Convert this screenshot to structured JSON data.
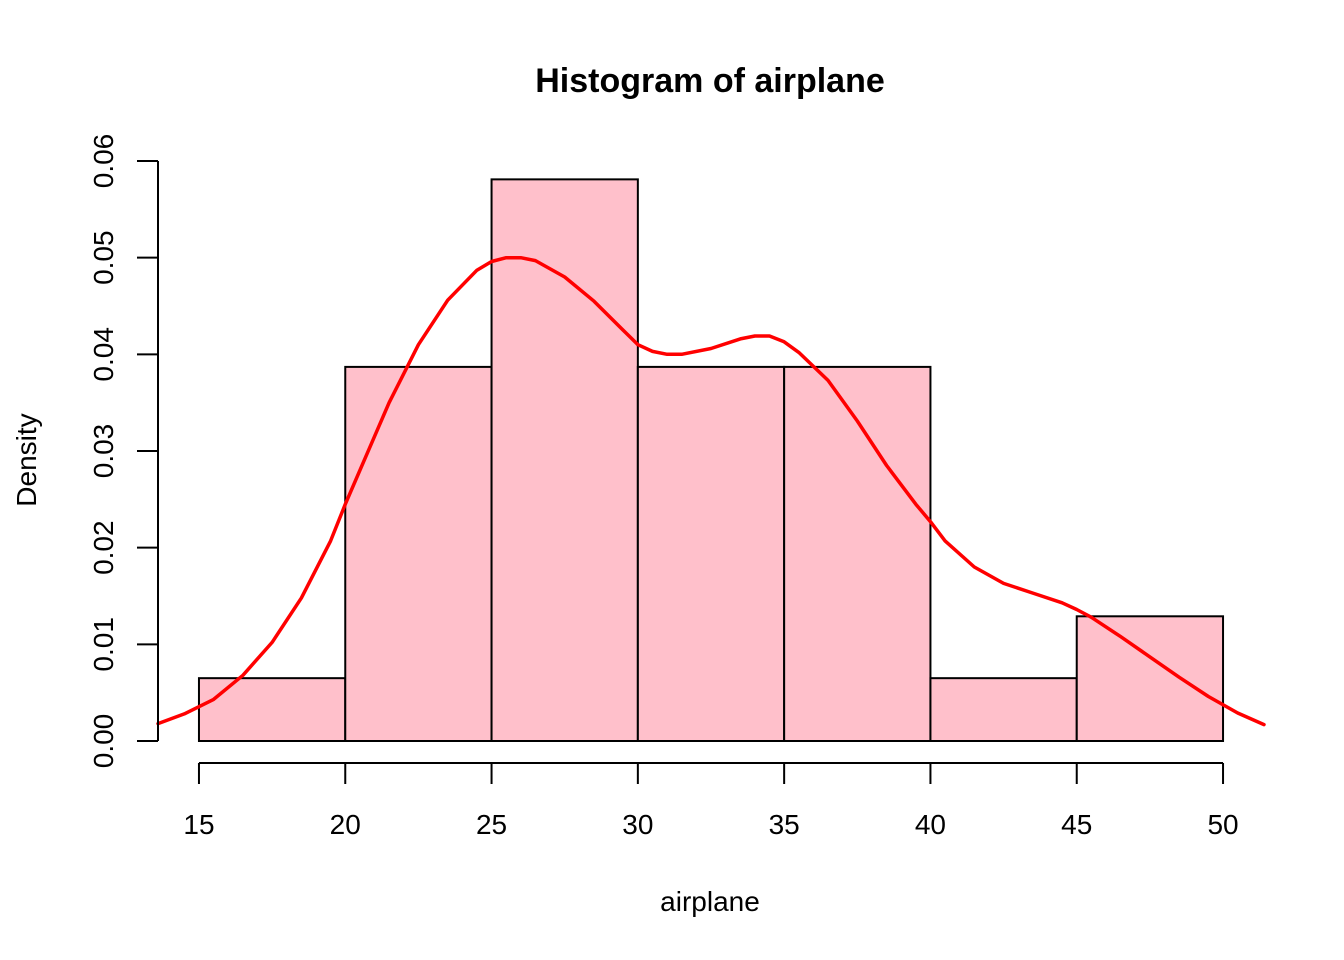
{
  "chart_data": {
    "type": "bar",
    "subtype": "histogram-with-density",
    "title": "Histogram of airplane",
    "xlabel": "airplane",
    "ylabel": "Density",
    "xlim": [
      13.6,
      51.4
    ],
    "ylim": [
      0,
      0.06
    ],
    "x_ticks": [
      15,
      20,
      25,
      30,
      35,
      40,
      45,
      50
    ],
    "x_tick_labels": [
      "15",
      "20",
      "25",
      "30",
      "35",
      "40",
      "45",
      "50"
    ],
    "y_ticks": [
      0,
      0.01,
      0.02,
      0.03,
      0.04,
      0.05,
      0.06
    ],
    "y_tick_labels": [
      "0.00",
      "0.01",
      "0.02",
      "0.03",
      "0.04",
      "0.05",
      "0.06"
    ],
    "bins": [
      {
        "start": 15,
        "end": 20,
        "density": 0.0065
      },
      {
        "start": 20,
        "end": 25,
        "density": 0.0387
      },
      {
        "start": 25,
        "end": 30,
        "density": 0.0581
      },
      {
        "start": 30,
        "end": 35,
        "density": 0.0387
      },
      {
        "start": 35,
        "end": 40,
        "density": 0.0387
      },
      {
        "start": 40,
        "end": 45,
        "density": 0.0065
      },
      {
        "start": 45,
        "end": 50,
        "density": 0.0129
      }
    ],
    "density_curve": {
      "x": [
        13.6,
        14.5,
        15.5,
        16.5,
        17.5,
        18.5,
        19.5,
        20.0,
        20.5,
        21.5,
        22.5,
        23.5,
        24.5,
        25.0,
        25.5,
        26.0,
        26.5,
        27.5,
        28.5,
        29.5,
        30.0,
        30.5,
        31.0,
        31.5,
        32.5,
        33.5,
        34.0,
        34.5,
        35.0,
        35.5,
        36.5,
        37.5,
        38.5,
        39.5,
        40.0,
        40.5,
        41.5,
        42.5,
        43.5,
        44.5,
        45.0,
        45.5,
        46.5,
        47.5,
        48.5,
        49.5,
        50.5,
        51.4
      ],
      "y": [
        0.0018,
        0.0028,
        0.0043,
        0.0068,
        0.0102,
        0.0148,
        0.0207,
        0.0245,
        0.028,
        0.035,
        0.041,
        0.0456,
        0.0487,
        0.0496,
        0.05,
        0.05,
        0.0497,
        0.048,
        0.0455,
        0.0425,
        0.041,
        0.0403,
        0.04,
        0.04,
        0.0406,
        0.0416,
        0.0419,
        0.0419,
        0.0413,
        0.0402,
        0.0373,
        0.0331,
        0.0285,
        0.0245,
        0.0227,
        0.0207,
        0.018,
        0.0163,
        0.0153,
        0.0143,
        0.0136,
        0.0128,
        0.0108,
        0.0087,
        0.0066,
        0.0046,
        0.0029,
        0.0017
      ]
    },
    "bar_fill": "#ffc0cb",
    "bar_stroke": "#000000",
    "curve_color": "#ff0000",
    "grid": false,
    "legend": "none"
  }
}
